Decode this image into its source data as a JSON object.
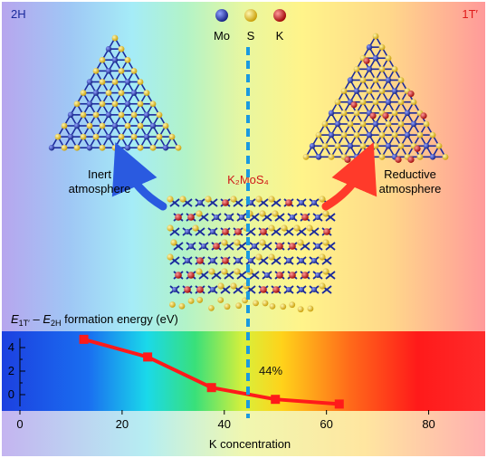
{
  "labels": {
    "phase_left": "2H",
    "phase_right": "1T′",
    "inert": [
      "Inert",
      "atmosphere"
    ],
    "reductive": [
      "Reductive",
      "atmosphere"
    ],
    "formula": "K₂MoS₄",
    "percent": "44%"
  },
  "legend": [
    {
      "label": "Mo",
      "color": "#1a2a9c"
    },
    {
      "label": "S",
      "color": "#e8c21a"
    },
    {
      "label": "K",
      "color": "#cc1111"
    }
  ],
  "colors": {
    "line": "#ff1a1a",
    "dashed_line": "#1a9ae0",
    "left_phase": "#1a2a9c",
    "right_phase": "#e01a1a",
    "arrow_left": "#2a5ae0",
    "arrow_right": "#ff3a2a"
  },
  "chart_data": {
    "type": "line",
    "title": "E1T′ – E2H formation energy (eV)",
    "title_parts": {
      "e": "E",
      "s1": "1T′",
      "dash": " – ",
      "s2": "2H",
      "tail": " formation energy (eV)"
    },
    "xlabel": "K concentration",
    "ylabel": "",
    "xlim": [
      0,
      90
    ],
    "ylim": [
      -1,
      5
    ],
    "xticks": [
      0,
      20,
      40,
      60,
      80
    ],
    "yticks": [
      0,
      2,
      4
    ],
    "x": [
      12.5,
      25,
      37.5,
      50,
      62.5
    ],
    "y": [
      4.7,
      3.2,
      0.6,
      -0.4,
      -0.8
    ],
    "vline": 44,
    "grid": false,
    "legend": "none"
  }
}
